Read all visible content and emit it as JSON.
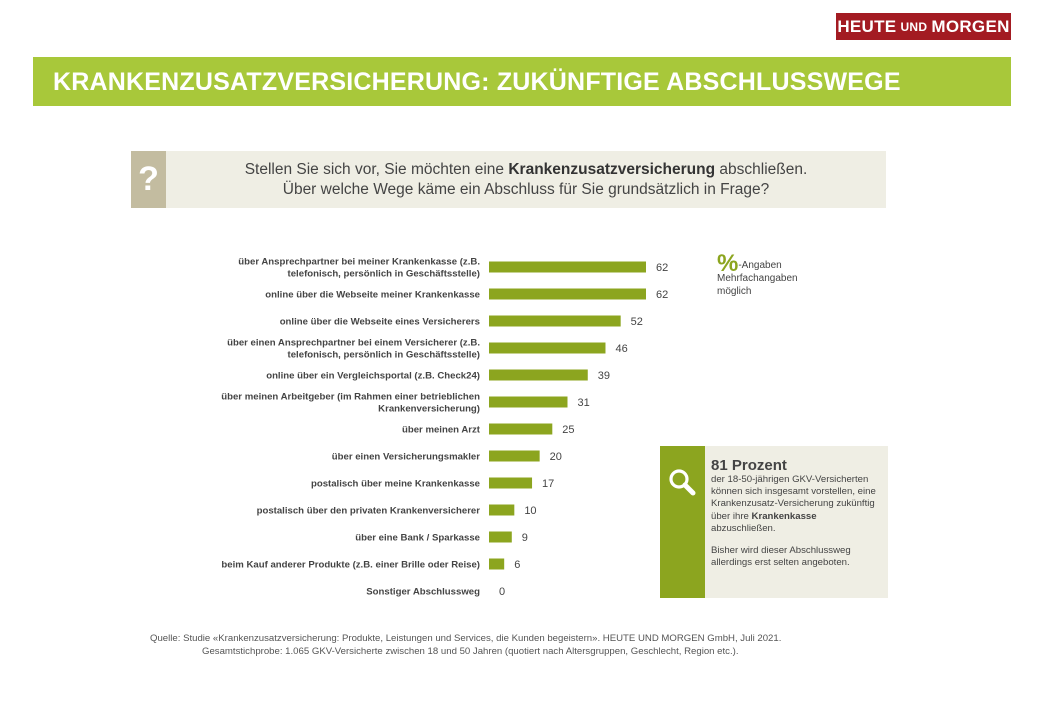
{
  "logo": {
    "part1": "HEUTE",
    "part2": "UND",
    "part3": "MORGEN"
  },
  "title": "KRANKENZUSATZVERSICHERUNG: ZUKÜNFTIGE ABSCHLUSSWEGE",
  "question": {
    "mark": "?",
    "line1_before": "Stellen Sie sich vor, Sie möchten eine ",
    "line1_bold": "Krankenzusatzversicherung",
    "line1_after": " abschließen.",
    "line2": "Über welche Wege käme ein Abschluss für Sie grundsätzlich in Frage?"
  },
  "note": {
    "pct_symbol": "%",
    "pct_label": "-Angaben",
    "line2": "Mehrfachangaben",
    "line3": "möglich"
  },
  "infobox": {
    "headline": "81 Prozent",
    "body1": "der 18-50-jährigen GKV-Versicherten können sich insgesamt vorstellen, eine Krankenzusatz-Versicherung zukünftig über ihre ",
    "body1_bold": "Krankenkasse",
    "body1_after": " abzuschließen.",
    "body2": "Bisher wird dieser Abschlussweg allerdings erst selten angeboten."
  },
  "source": {
    "line1": "Quelle:  Studie «Krankenzusatzversicherung: Produkte, Leistungen und Services, die Kunden begeistern». HEUTE  UND  MORGEN  GmbH,  Juli 2021.",
    "line2": "Gesamtstichprobe: 1.065 GKV-Versicherte zwischen 18 und 50 Jahren (quotiert nach Altersgruppen, Geschlecht, Region etc.)."
  },
  "chart_data": {
    "type": "bar",
    "orientation": "horizontal",
    "bar_color": "#8ca51f",
    "categories": [
      [
        "über Ansprechpartner bei meiner Krankenkasse (z.B.",
        "telefonisch, persönlich in Geschäftsstelle)"
      ],
      [
        "online über die Webseite meiner Krankenkasse"
      ],
      [
        "online über die Webseite eines Versicherers"
      ],
      [
        "über einen Ansprechpartner bei einem Versicherer (z.B.",
        "telefonisch, persönlich in Geschäftsstelle)"
      ],
      [
        "online über ein Vergleichsportal (z.B. Check24)"
      ],
      [
        "über meinen Arbeitgeber (im Rahmen einer betrieblichen",
        "Krankenversicherung)"
      ],
      [
        "über meinen Arzt"
      ],
      [
        "über einen Versicherungsmakler"
      ],
      [
        "postalisch über meine Krankenkasse"
      ],
      [
        "postalisch über den privaten Krankenversicherer"
      ],
      [
        "über eine Bank / Sparkasse"
      ],
      [
        "beim Kauf anderer Produkte (z.B. einer Brille oder Reise)"
      ],
      [
        "Sonstiger Abschlussweg"
      ]
    ],
    "values": [
      62,
      62,
      52,
      46,
      39,
      31,
      25,
      20,
      17,
      10,
      9,
      6,
      0
    ]
  }
}
